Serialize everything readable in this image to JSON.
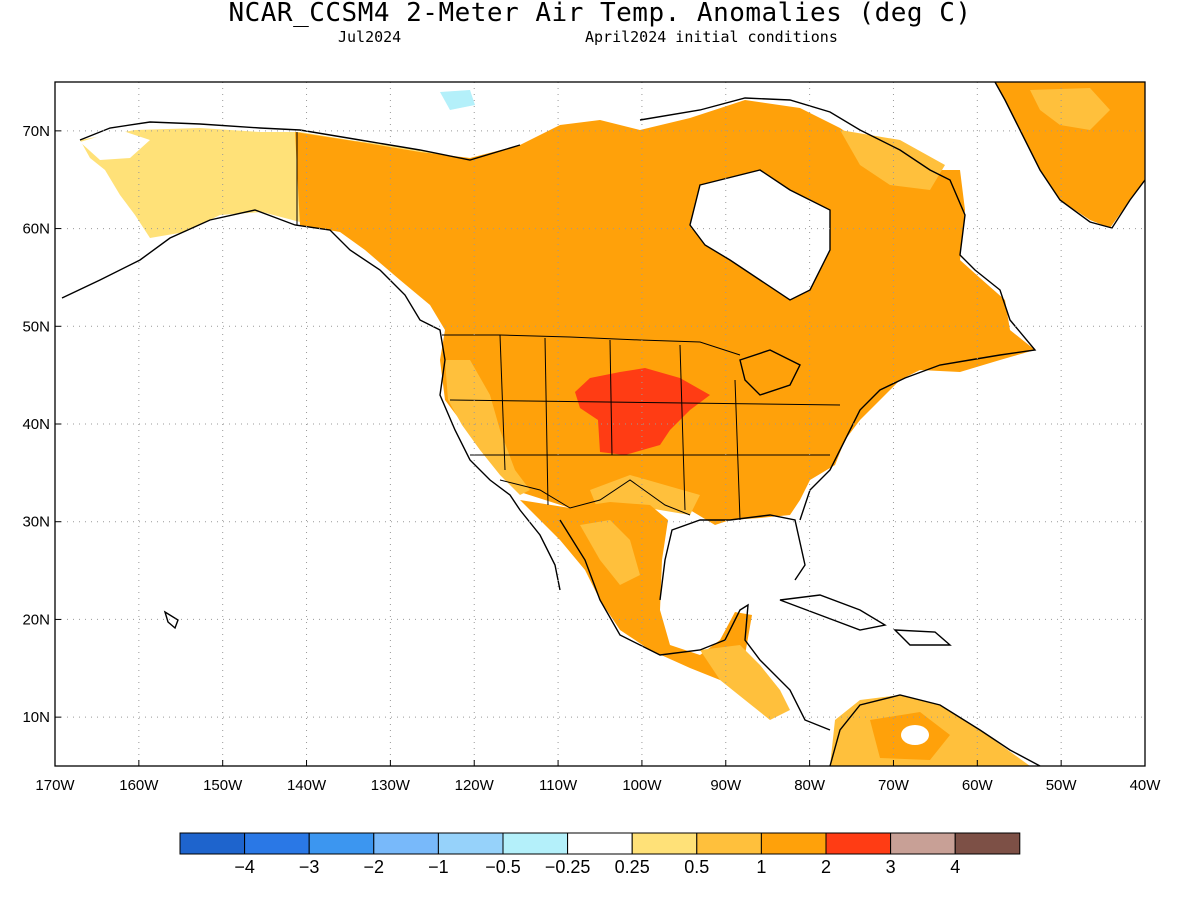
{
  "header": {
    "title": "NCAR_CCSM4 2-Meter Air Temp. Anomalies (deg C)",
    "target_month": "Jul2024",
    "init_text": "April2024 initial conditions"
  },
  "lat_labels": [
    "70N",
    "60N",
    "50N",
    "40N",
    "30N",
    "20N",
    "10N"
  ],
  "lon_labels": [
    "170W",
    "160W",
    "150W",
    "140W",
    "130W",
    "120W",
    "110W",
    "100W",
    "90W",
    "80W",
    "70W",
    "60W",
    "50W",
    "40W"
  ],
  "map": {
    "lon_range": [
      -170,
      -40
    ],
    "lat_range": [
      5,
      75
    ],
    "grid": "dotted",
    "max_anomaly_region": "central Great Plains (2 to 3 deg C)"
  },
  "colorbar": {
    "ticks": [
      "−4",
      "−3",
      "−2",
      "−1",
      "−0.5",
      "−0.25",
      "0.25",
      "0.5",
      "1",
      "2",
      "3",
      "4"
    ],
    "colors": [
      "#1e64cd",
      "#2a78e6",
      "#3c96f0",
      "#78b9fa",
      "#96d2fa",
      "#b4f0fa",
      "#ffffff",
      "#ffe178",
      "#ffc03c",
      "#ffa10a",
      "#ff3c14",
      "#c8a096",
      "#7d5046"
    ]
  }
}
